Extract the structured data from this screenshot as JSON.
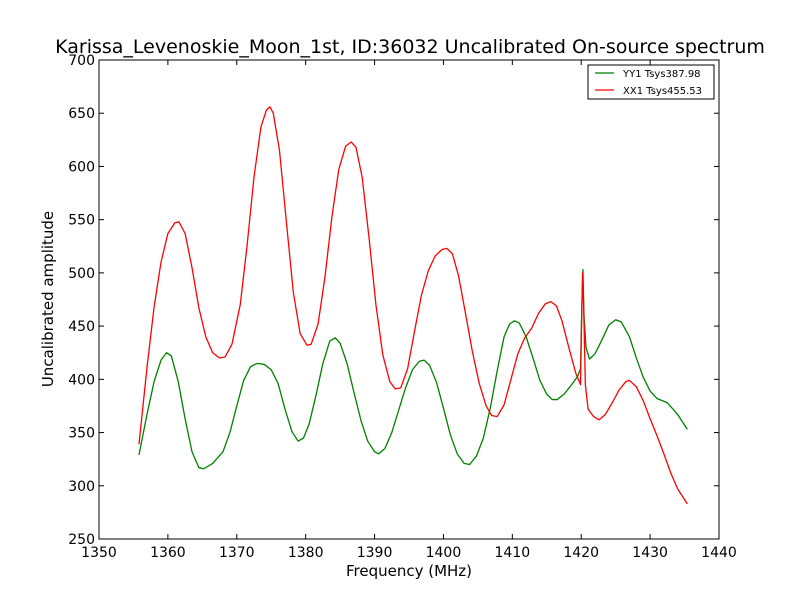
{
  "chart_data": {
    "type": "line",
    "title": "Karissa_Levenoskie_Moon_1st, ID:36032 Uncalibrated On-source spectrum",
    "xlabel": "Frequency (MHz)",
    "ylabel": "Uncalibrated amplitude",
    "xlim": [
      1350,
      1440
    ],
    "ylim": [
      250,
      700
    ],
    "xticks": [
      1350,
      1360,
      1370,
      1380,
      1390,
      1400,
      1410,
      1420,
      1430,
      1440
    ],
    "yticks": [
      250,
      300,
      350,
      400,
      450,
      500,
      550,
      600,
      650,
      700
    ],
    "grid": false,
    "legend_position": "top-right",
    "series": [
      {
        "name": "YY1 Tsys387.98",
        "color": "#008000",
        "points": [
          [
            1355.8,
            329
          ],
          [
            1357.0,
            368
          ],
          [
            1358.0,
            398
          ],
          [
            1359.0,
            418
          ],
          [
            1359.8,
            425
          ],
          [
            1360.5,
            422
          ],
          [
            1361.5,
            398
          ],
          [
            1362.5,
            363
          ],
          [
            1363.5,
            332
          ],
          [
            1364.5,
            317
          ],
          [
            1365.2,
            316
          ],
          [
            1366.5,
            321
          ],
          [
            1368.0,
            332
          ],
          [
            1369.0,
            350
          ],
          [
            1370.0,
            375
          ],
          [
            1371.0,
            399
          ],
          [
            1372.0,
            412
          ],
          [
            1373.0,
            415
          ],
          [
            1374.0,
            414
          ],
          [
            1375.0,
            409
          ],
          [
            1376.0,
            396
          ],
          [
            1377.0,
            372
          ],
          [
            1378.0,
            351
          ],
          [
            1378.9,
            342
          ],
          [
            1379.7,
            345
          ],
          [
            1380.5,
            358
          ],
          [
            1381.5,
            385
          ],
          [
            1382.5,
            415
          ],
          [
            1383.5,
            436
          ],
          [
            1384.3,
            439
          ],
          [
            1385.0,
            434
          ],
          [
            1386.0,
            415
          ],
          [
            1387.0,
            388
          ],
          [
            1388.0,
            362
          ],
          [
            1389.0,
            342
          ],
          [
            1390.0,
            332
          ],
          [
            1390.6,
            330
          ],
          [
            1391.5,
            335
          ],
          [
            1392.5,
            350
          ],
          [
            1393.5,
            371
          ],
          [
            1394.5,
            392
          ],
          [
            1395.5,
            409
          ],
          [
            1396.5,
            417
          ],
          [
            1397.2,
            418
          ],
          [
            1398.0,
            413
          ],
          [
            1399.0,
            397
          ],
          [
            1400.0,
            373
          ],
          [
            1401.0,
            348
          ],
          [
            1402.0,
            330
          ],
          [
            1403.0,
            321
          ],
          [
            1403.8,
            320
          ],
          [
            1404.8,
            328
          ],
          [
            1405.8,
            345
          ],
          [
            1406.8,
            373
          ],
          [
            1407.8,
            408
          ],
          [
            1408.8,
            440
          ],
          [
            1409.6,
            452
          ],
          [
            1410.3,
            455
          ],
          [
            1411.0,
            453
          ],
          [
            1412.0,
            440
          ],
          [
            1413.0,
            420
          ],
          [
            1414.0,
            399
          ],
          [
            1415.0,
            386
          ],
          [
            1415.8,
            381
          ],
          [
            1416.5,
            381
          ],
          [
            1417.5,
            386
          ],
          [
            1418.5,
            394
          ],
          [
            1419.5,
            403
          ],
          [
            1419.9,
            410
          ],
          [
            1420.1,
            470
          ],
          [
            1420.25,
            503
          ],
          [
            1420.4,
            460
          ],
          [
            1420.7,
            430
          ],
          [
            1421.2,
            419
          ],
          [
            1422.0,
            424
          ],
          [
            1423.0,
            437
          ],
          [
            1424.0,
            451
          ],
          [
            1425.0,
            456
          ],
          [
            1425.8,
            454
          ],
          [
            1427.0,
            440
          ],
          [
            1428.0,
            420
          ],
          [
            1429.0,
            402
          ],
          [
            1430.0,
            389
          ],
          [
            1431.0,
            382
          ],
          [
            1432.5,
            378
          ],
          [
            1434.0,
            367
          ],
          [
            1435.4,
            353
          ]
        ]
      },
      {
        "name": "XX1 Tsys455.53",
        "color": "#ff0000",
        "points": [
          [
            1355.8,
            339
          ],
          [
            1357.0,
            413
          ],
          [
            1358.0,
            468
          ],
          [
            1359.0,
            510
          ],
          [
            1360.0,
            537
          ],
          [
            1361.0,
            547
          ],
          [
            1361.6,
            548
          ],
          [
            1362.5,
            537
          ],
          [
            1363.5,
            505
          ],
          [
            1364.5,
            467
          ],
          [
            1365.5,
            440
          ],
          [
            1366.5,
            425
          ],
          [
            1367.5,
            420
          ],
          [
            1368.3,
            421
          ],
          [
            1369.3,
            433
          ],
          [
            1370.5,
            470
          ],
          [
            1371.5,
            526
          ],
          [
            1372.5,
            590
          ],
          [
            1373.5,
            637
          ],
          [
            1374.3,
            653
          ],
          [
            1374.8,
            656
          ],
          [
            1375.3,
            650
          ],
          [
            1376.2,
            615
          ],
          [
            1377.2,
            548
          ],
          [
            1378.2,
            482
          ],
          [
            1379.2,
            443
          ],
          [
            1380.2,
            432
          ],
          [
            1380.8,
            433
          ],
          [
            1381.8,
            452
          ],
          [
            1382.8,
            496
          ],
          [
            1383.8,
            552
          ],
          [
            1384.8,
            597
          ],
          [
            1385.8,
            619
          ],
          [
            1386.6,
            623
          ],
          [
            1387.3,
            618
          ],
          [
            1388.2,
            590
          ],
          [
            1389.2,
            533
          ],
          [
            1390.2,
            470
          ],
          [
            1391.2,
            423
          ],
          [
            1392.2,
            398
          ],
          [
            1393.0,
            391
          ],
          [
            1393.8,
            392
          ],
          [
            1394.8,
            410
          ],
          [
            1395.8,
            445
          ],
          [
            1396.8,
            479
          ],
          [
            1397.8,
            502
          ],
          [
            1398.8,
            516
          ],
          [
            1399.8,
            522
          ],
          [
            1400.5,
            523
          ],
          [
            1401.3,
            518
          ],
          [
            1402.2,
            497
          ],
          [
            1403.2,
            462
          ],
          [
            1404.2,
            426
          ],
          [
            1405.2,
            396
          ],
          [
            1406.2,
            375
          ],
          [
            1407.0,
            366
          ],
          [
            1407.8,
            365
          ],
          [
            1408.8,
            376
          ],
          [
            1409.8,
            400
          ],
          [
            1410.8,
            424
          ],
          [
            1411.8,
            439
          ],
          [
            1412.8,
            448
          ],
          [
            1413.8,
            462
          ],
          [
            1414.8,
            471
          ],
          [
            1415.6,
            473
          ],
          [
            1416.4,
            469
          ],
          [
            1417.2,
            455
          ],
          [
            1418.2,
            430
          ],
          [
            1419.2,
            406
          ],
          [
            1419.9,
            395
          ],
          [
            1420.05,
            455
          ],
          [
            1420.2,
            500
          ],
          [
            1420.35,
            470
          ],
          [
            1420.6,
            395
          ],
          [
            1421.0,
            372
          ],
          [
            1421.8,
            365
          ],
          [
            1422.6,
            362
          ],
          [
            1423.5,
            367
          ],
          [
            1424.5,
            378
          ],
          [
            1425.5,
            390
          ],
          [
            1426.5,
            398
          ],
          [
            1427.0,
            399
          ],
          [
            1428.0,
            393
          ],
          [
            1429.0,
            380
          ],
          [
            1430.0,
            363
          ],
          [
            1431.0,
            347
          ],
          [
            1432.0,
            330
          ],
          [
            1433.0,
            312
          ],
          [
            1434.0,
            297
          ],
          [
            1435.4,
            283
          ]
        ]
      }
    ]
  }
}
